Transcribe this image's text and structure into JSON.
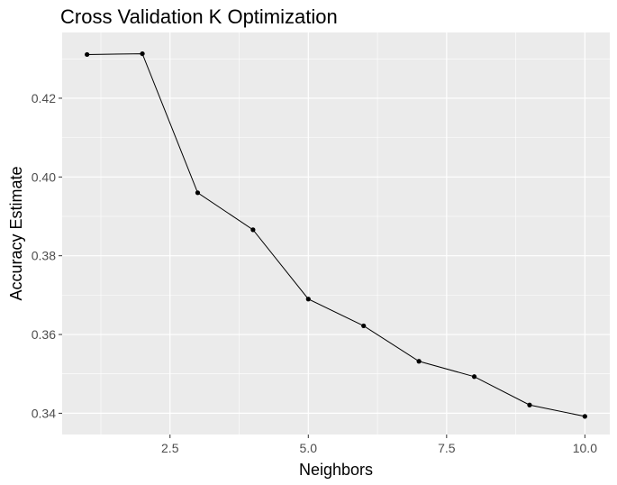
{
  "chart_data": {
    "type": "line",
    "title": "Cross Validation K Optimization",
    "xlabel": "Neighbors",
    "ylabel": "Accuracy Estimate",
    "x": [
      1,
      2,
      3,
      4,
      5,
      6,
      7,
      8,
      9,
      10
    ],
    "series": [
      {
        "values": [
          0.4311,
          0.4313,
          0.396,
          0.3866,
          0.369,
          0.3622,
          0.3532,
          0.3493,
          0.3421,
          0.3392
        ]
      }
    ],
    "xlim": [
      0.55,
      10.45
    ],
    "ylim": [
      0.3346,
      0.4367
    ],
    "x_ticks": [
      {
        "value": 2.5,
        "label": "2.5"
      },
      {
        "value": 5.0,
        "label": "5.0"
      },
      {
        "value": 7.5,
        "label": "7.5"
      },
      {
        "value": 10.0,
        "label": "10.0"
      }
    ],
    "x_minor_ticks": [
      1.25,
      3.75,
      6.25,
      8.75
    ],
    "y_ticks": [
      {
        "value": 0.34,
        "label": "0.34"
      },
      {
        "value": 0.36,
        "label": "0.36"
      },
      {
        "value": 0.38,
        "label": "0.38"
      },
      {
        "value": 0.4,
        "label": "0.40"
      },
      {
        "value": 0.42,
        "label": "0.42"
      }
    ],
    "y_minor_ticks": [
      0.35,
      0.37,
      0.39,
      0.41,
      0.43
    ],
    "grid": true,
    "legend": "none",
    "colors": {
      "panel_background": "#ebebeb",
      "grid_line": "#ffffff",
      "series_line": "#000000",
      "point": "#000000",
      "tick_mark": "#333333"
    }
  }
}
